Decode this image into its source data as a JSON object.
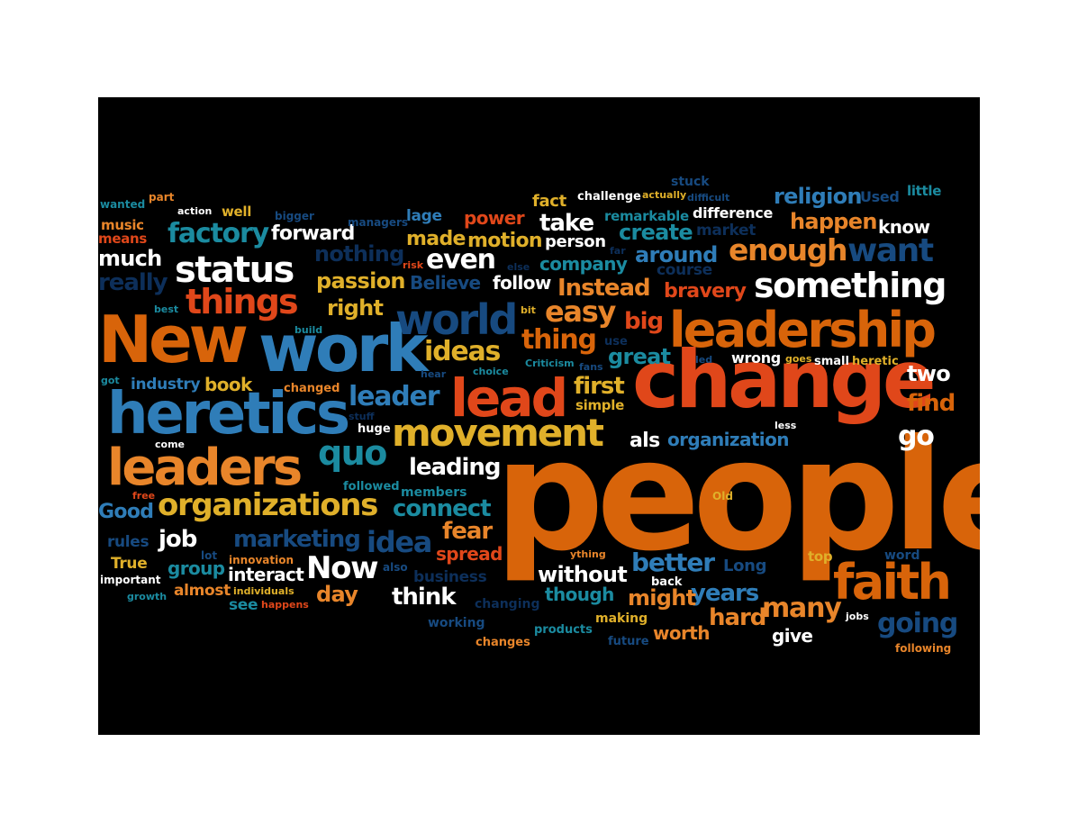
{
  "words": [
    "people",
    "change",
    "New",
    "work",
    "heretics",
    "leadership",
    "lead",
    "leaders",
    "faith",
    "world",
    "movement",
    "status",
    "things",
    "something",
    "organizations",
    "quo",
    "enough",
    "want",
    "factory",
    "even",
    "ideas",
    "idea",
    "Now",
    "leader",
    "thing",
    "easy",
    "many",
    "going",
    "Instead",
    "passion",
    "right",
    "bravery",
    "religion",
    "really",
    "marketing",
    "nothing",
    "connect",
    "better",
    "years",
    "find",
    "go",
    "leading",
    "think",
    "big",
    "fear",
    "hard",
    "first",
    "Good",
    "job",
    "two",
    "without",
    "great",
    "around",
    "create",
    "made",
    "motion",
    "take",
    "power",
    "happen",
    "know",
    "much",
    "forward",
    "book",
    "day",
    "als",
    "organization",
    "spread",
    "group",
    "interact",
    "might",
    "though",
    "worth",
    "give",
    "company",
    "Believe",
    "follow",
    "industry",
    "course",
    "market",
    "difference",
    "remarkable",
    "person",
    "lage",
    "rules",
    "True",
    "almost",
    "see",
    "music",
    "means",
    "wanted",
    "part",
    "action",
    "well",
    "bigger",
    "managers",
    "stuck",
    "fact",
    "challenge",
    "actually",
    "difficult",
    "Used",
    "little",
    "risk",
    "else",
    "far",
    "bit",
    "use",
    "led",
    "fans",
    "Criticism",
    "choice",
    "hear",
    "simple",
    "changed",
    "got",
    "stuff",
    "huge",
    "come",
    "free",
    "followed",
    "members",
    "Old",
    "lot",
    "innovation",
    "important",
    "growth",
    "individuals",
    "happens",
    "also",
    "business",
    "changing",
    "working",
    "changes",
    "products",
    "making",
    "future",
    "back",
    "less",
    "wrong",
    "goes",
    "small",
    "heretic",
    "top",
    "word",
    "Long",
    "jobs",
    "following",
    "ything",
    "best",
    "build"
  ]
}
